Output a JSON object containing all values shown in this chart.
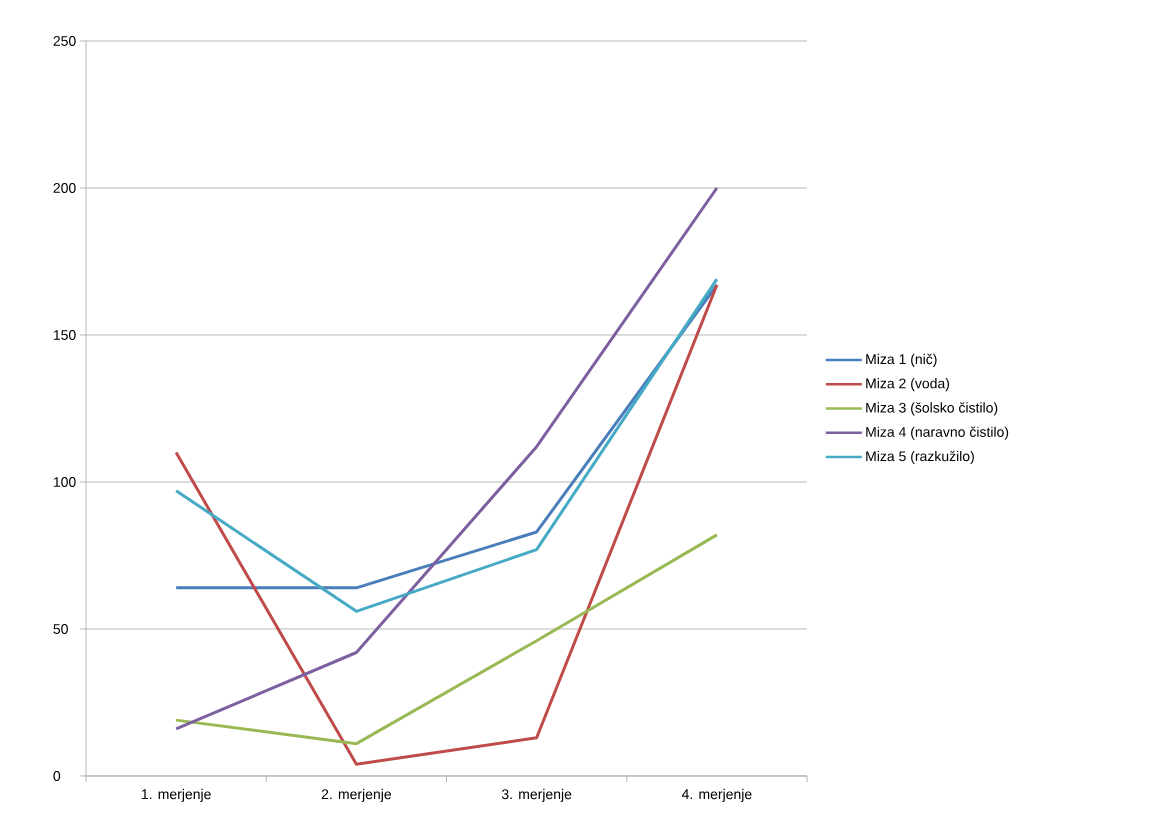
{
  "chart_data": {
    "type": "line",
    "categories": [
      "1. merjenje",
      "2. merjenje",
      "3. merjenje",
      "4. merjenje"
    ],
    "series": [
      {
        "name": "Miza 1 (nič)",
        "color": "#4a7ebb",
        "values": [
          64,
          64,
          83,
          167
        ]
      },
      {
        "name": "Miza 2 (voda)",
        "color": "#be4b48",
        "values": [
          110,
          4,
          13,
          167
        ]
      },
      {
        "name": "Miza 3 (šolsko čistilo)",
        "color": "#98b954",
        "values": [
          19,
          11,
          46,
          82
        ]
      },
      {
        "name": "Miza 4 (naravno čistilo)",
        "color": "#7d60a0",
        "values": [
          16,
          42,
          112,
          200
        ]
      },
      {
        "name": "Miza 5 (razkužilo)",
        "color": "#46aac5",
        "values": [
          97,
          56,
          77,
          169
        ]
      }
    ],
    "ylim": [
      0,
      250
    ],
    "yticks": [
      0,
      50,
      100,
      150,
      200,
      250
    ],
    "grid": "y",
    "legend": "right",
    "marker": "none",
    "line_style": "solid"
  }
}
